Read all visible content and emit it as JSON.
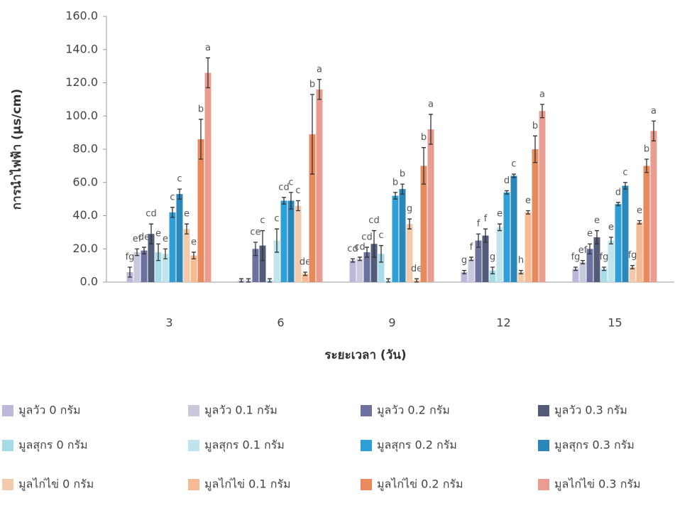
{
  "chart_data": {
    "type": "bar",
    "y_label": "การนำไฟฟ้า (µs/cm)",
    "x_label": "ระยะเวลา (วัน)",
    "categories": [
      "3",
      "6",
      "9",
      "12",
      "15"
    ],
    "ylim": [
      0,
      160
    ],
    "yticks": [
      {
        "value": 0,
        "label": "0.0"
      },
      {
        "value": 20,
        "label": "20.0"
      },
      {
        "value": 40,
        "label": "40.0"
      },
      {
        "value": 60,
        "label": "60.0"
      },
      {
        "value": 80,
        "label": "80.0"
      },
      {
        "value": 100,
        "label": "100.0"
      },
      {
        "value": 120,
        "label": "120.0"
      },
      {
        "value": 140,
        "label": "140.0"
      },
      {
        "value": 160,
        "label": "160.0"
      }
    ],
    "series": [
      {
        "name": "มูลวัว 0 กรัม",
        "color": "#bdb7dc",
        "values": [
          6,
          1,
          13,
          6,
          8
        ],
        "errors": [
          3,
          1,
          1,
          1,
          1
        ],
        "letters": [
          "fg",
          null,
          "cd",
          "g",
          "fg"
        ]
      },
      {
        "name": "มูลวัว 0.1 กรัม",
        "color": "#c9c9dd",
        "values": [
          18,
          1,
          14,
          14,
          12
        ],
        "errors": [
          2,
          1,
          1,
          1,
          1
        ],
        "letters": [
          "ef",
          null,
          "cd",
          "f",
          "ef"
        ]
      },
      {
        "name": "มูลวัว 0.2 กรัม",
        "color": "#6d719f",
        "values": [
          19,
          20,
          18,
          25,
          20
        ],
        "errors": [
          2,
          4,
          3,
          4,
          3
        ],
        "letters": [
          "de",
          "ce",
          "cd",
          "f",
          "e"
        ]
      },
      {
        "name": "มูลวัว 0.3 กรัม",
        "color": "#525b78",
        "values": [
          29,
          22,
          23,
          28,
          27
        ],
        "errors": [
          6,
          9,
          8,
          4,
          4
        ],
        "letters": [
          "cd",
          "c",
          "cd",
          "f",
          "e"
        ]
      },
      {
        "name": "มูลสุกร 0 กรัม",
        "color": "#a8dbe8",
        "values": [
          18,
          1,
          17,
          7,
          8
        ],
        "errors": [
          5,
          1,
          5,
          2,
          1
        ],
        "letters": [
          "e",
          null,
          "c",
          "g",
          "fg"
        ]
      },
      {
        "name": "มูลสุกร 0.1 กรัม",
        "color": "#c0e4ec",
        "values": [
          17,
          25,
          1,
          33,
          25
        ],
        "errors": [
          3,
          7,
          1,
          2,
          2
        ],
        "letters": [
          "e",
          "c",
          null,
          "e",
          "e"
        ]
      },
      {
        "name": "มูลสุกร  0.2 กรัม",
        "color": "#2f9fd7",
        "values": [
          42,
          49,
          52,
          54,
          47
        ],
        "errors": [
          3,
          2,
          2,
          1,
          1
        ],
        "letters": [
          "c",
          "cd",
          "b",
          "d",
          "d"
        ]
      },
      {
        "name": "มูลสุกร 0.3 กรัม",
        "color": "#2b87b9",
        "values": [
          53,
          49,
          56,
          64,
          58
        ],
        "errors": [
          3,
          5,
          3,
          1,
          2
        ],
        "letters": [
          "c",
          "c",
          "b",
          "c",
          "c"
        ]
      },
      {
        "name": "มูลไก่ไข่ 0 กรัม",
        "color": "#f3cbac",
        "values": [
          32,
          46,
          35,
          6,
          9
        ],
        "errors": [
          3,
          3,
          3,
          1,
          1
        ],
        "letters": [
          "e",
          "c",
          "g",
          "h",
          "fg"
        ]
      },
      {
        "name": "มูลไก่ไข่ 0.1 กรัม",
        "color": "#f6bb92",
        "values": [
          16,
          5,
          1,
          42,
          36
        ],
        "errors": [
          2,
          1,
          1,
          1,
          1
        ],
        "letters": [
          "e",
          "de",
          "de",
          "e",
          "e"
        ]
      },
      {
        "name": "มูลไก่ไข่  0.2 กรัม",
        "color": "#e98a5c",
        "values": [
          86,
          89,
          70,
          80,
          70
        ],
        "errors": [
          12,
          24,
          11,
          8,
          4
        ],
        "letters": [
          "b",
          "b",
          "b",
          "b",
          "b"
        ]
      },
      {
        "name": "มูลไก่ไข่  0.3 กรัม",
        "color": "#e99c90",
        "values": [
          126,
          116,
          92,
          103,
          91
        ],
        "errors": [
          9,
          6,
          9,
          4,
          6
        ],
        "letters": [
          "a",
          "a",
          "a",
          "a",
          "a"
        ]
      }
    ]
  }
}
